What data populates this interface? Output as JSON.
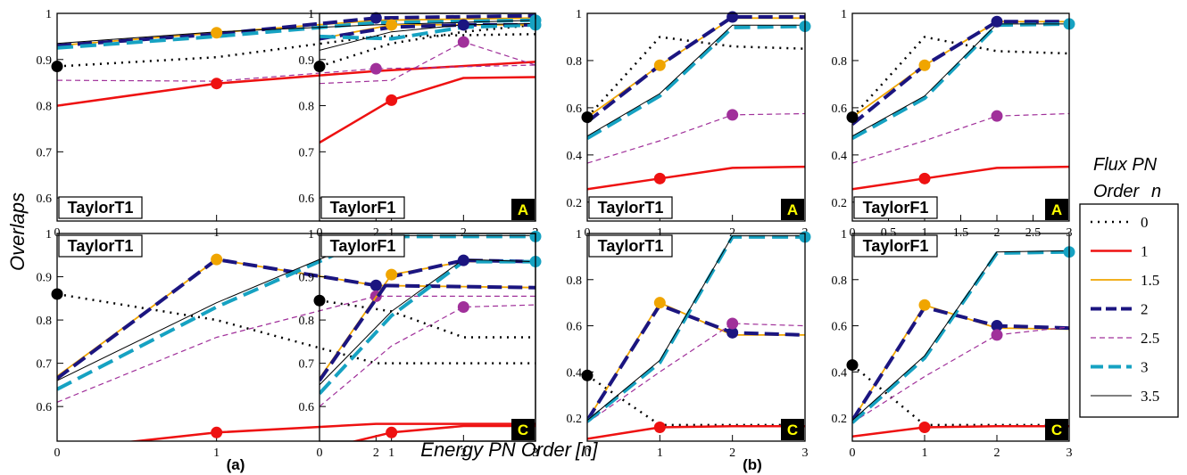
{
  "figure": {
    "ylabel": "Overlaps",
    "xlabel": "Energy PN Order",
    "xlabel_bracket": "[n]",
    "sub_a": "(a)",
    "sub_b": "(b)",
    "legend": {
      "title_line1": "Flux PN",
      "title_line2": "Order",
      "title_var": "n",
      "entries": [
        "0",
        "1",
        "1.5",
        "2",
        "2.5",
        "3",
        "3.5"
      ]
    }
  },
  "styles": {
    "0": {
      "color": "#000000",
      "dash": "2,6",
      "width": 2.5
    },
    "1": {
      "color": "#ee1111",
      "dash": "",
      "width": 2.5
    },
    "1.5": {
      "color": "#f0a500",
      "dash": "",
      "width": 1.8
    },
    "2": {
      "color": "#1b1580",
      "dash": "16,7",
      "width": 4
    },
    "2.5": {
      "color": "#a0309a",
      "dash": "6,4",
      "width": 1.2
    },
    "3": {
      "color": "#16a2c2",
      "dash": "18,8",
      "width": 4
    },
    "3.5": {
      "color": "#000000",
      "dash": "",
      "width": 1
    }
  },
  "chart_data": [
    {
      "type": "line",
      "panel": "top-left",
      "label": "TaylorT1",
      "badge": "A",
      "x": [
        0,
        1,
        2,
        3
      ],
      "xticks": [
        "0",
        "1",
        "2",
        "3"
      ],
      "ylim": [
        0.55,
        1.0
      ],
      "yticks": [
        "0.6",
        "0.7",
        "0.8",
        "0.9",
        "1"
      ],
      "series": [
        {
          "name": "0",
          "values": [
            0.885,
            0.905,
            0.95,
            0.955
          ],
          "marker": 0
        },
        {
          "name": "1",
          "values": [
            0.8,
            0.848,
            0.875,
            0.895
          ],
          "marker": 1
        },
        {
          "name": "1.5",
          "values": [
            0.93,
            0.958,
            0.985,
            0.99
          ],
          "marker": 1
        },
        {
          "name": "2",
          "values": [
            0.93,
            0.955,
            0.99,
            0.995
          ],
          "marker": 2
        },
        {
          "name": "2.5",
          "values": [
            0.855,
            0.853,
            0.88,
            0.888
          ],
          "marker": 2
        },
        {
          "name": "3",
          "values": [
            0.925,
            0.95,
            0.98,
            0.985
          ],
          "marker": 3
        },
        {
          "name": "3.5",
          "values": [
            0.935,
            0.96,
            0.975,
            0.985
          ],
          "marker": null
        }
      ]
    },
    {
      "type": "line",
      "panel": "top-2",
      "label": "TaylorF1",
      "badge": "A",
      "x": [
        0,
        1,
        2,
        3
      ],
      "xticks": [
        "0",
        "1",
        "2",
        "3"
      ],
      "ylim": [
        0.55,
        1.0
      ],
      "yticks": [
        "0.6",
        "0.7",
        "0.8",
        "0.9",
        "1"
      ],
      "series": [
        {
          "name": "0",
          "values": [
            0.885,
            0.935,
            0.96,
            0.975
          ],
          "marker": 0
        },
        {
          "name": "1",
          "values": [
            0.72,
            0.812,
            0.86,
            0.862
          ],
          "marker": 1
        },
        {
          "name": "1.5",
          "values": [
            0.945,
            0.975,
            0.975,
            0.975
          ],
          "marker": 1
        },
        {
          "name": "2",
          "values": [
            0.945,
            0.97,
            0.975,
            0.975
          ],
          "marker": 2
        },
        {
          "name": "2.5",
          "values": [
            0.848,
            0.855,
            0.938,
            0.888
          ],
          "marker": 2
        },
        {
          "name": "3",
          "values": [
            0.95,
            0.945,
            0.97,
            0.975
          ],
          "marker": 3
        },
        {
          "name": "3.5",
          "values": [
            0.92,
            0.96,
            0.975,
            0.978
          ],
          "marker": null
        }
      ]
    },
    {
      "type": "line",
      "panel": "top-3",
      "label": "TaylorT1",
      "badge": "A",
      "x": [
        0,
        1,
        2,
        3
      ],
      "xticks": [
        "0",
        "1",
        "2",
        "3"
      ],
      "ylim": [
        0.12,
        1.0
      ],
      "yticks": [
        "0.2",
        "0.4",
        "0.6",
        "0.8",
        "1"
      ],
      "series": [
        {
          "name": "0",
          "values": [
            0.56,
            0.9,
            0.86,
            0.85
          ],
          "marker": 0
        },
        {
          "name": "1",
          "values": [
            0.255,
            0.3,
            0.345,
            0.35
          ],
          "marker": 1
        },
        {
          "name": "1.5",
          "values": [
            0.56,
            0.78,
            0.98,
            0.98
          ],
          "marker": 1
        },
        {
          "name": "2",
          "values": [
            0.54,
            0.78,
            0.985,
            0.985
          ],
          "marker": 2
        },
        {
          "name": "2.5",
          "values": [
            0.365,
            0.46,
            0.57,
            0.575
          ],
          "marker": 2
        },
        {
          "name": "3",
          "values": [
            0.47,
            0.65,
            0.94,
            0.945
          ],
          "marker": 3
        },
        {
          "name": "3.5",
          "values": [
            0.48,
            0.66,
            0.95,
            0.95
          ],
          "marker": null
        }
      ]
    },
    {
      "type": "line",
      "panel": "top-right",
      "label": "TaylorF1",
      "badge": "A",
      "x": [
        0,
        1,
        2,
        3
      ],
      "xticks": [
        "0",
        "0.5",
        "1",
        "1.5",
        "2",
        "2.5",
        "3"
      ],
      "ylim": [
        0.12,
        1.0
      ],
      "yticks": [
        "0.2",
        "0.4",
        "0.6",
        "0.8",
        "1"
      ],
      "series": [
        {
          "name": "0",
          "values": [
            0.56,
            0.9,
            0.84,
            0.83
          ],
          "marker": 0
        },
        {
          "name": "1",
          "values": [
            0.255,
            0.3,
            0.345,
            0.35
          ],
          "marker": 1
        },
        {
          "name": "1.5",
          "values": [
            0.56,
            0.78,
            0.965,
            0.965
          ],
          "marker": 1
        },
        {
          "name": "2",
          "values": [
            0.53,
            0.78,
            0.965,
            0.965
          ],
          "marker": 2
        },
        {
          "name": "2.5",
          "values": [
            0.365,
            0.46,
            0.565,
            0.575
          ],
          "marker": 2
        },
        {
          "name": "3",
          "values": [
            0.47,
            0.64,
            0.95,
            0.955
          ],
          "marker": 3
        },
        {
          "name": "3.5",
          "values": [
            0.48,
            0.65,
            0.955,
            0.955
          ],
          "marker": null
        }
      ]
    },
    {
      "type": "line",
      "panel": "bottom-left",
      "label": "TaylorT1",
      "badge": "C",
      "x": [
        0,
        1,
        2,
        3
      ],
      "xticks": [
        "0",
        "1",
        "2",
        "3"
      ],
      "ylim": [
        0.52,
        1.0
      ],
      "yticks": [
        "0.6",
        "0.7",
        "0.8",
        "0.9",
        "1"
      ],
      "series": [
        {
          "name": "0",
          "values": [
            0.86,
            0.8,
            0.7,
            0.7
          ],
          "marker": 0
        },
        {
          "name": "1",
          "values": [
            0.5,
            0.54,
            0.56,
            0.56
          ],
          "marker": 1
        },
        {
          "name": "1.5",
          "values": [
            0.67,
            0.94,
            0.88,
            0.875
          ],
          "marker": 1
        },
        {
          "name": "2",
          "values": [
            0.665,
            0.94,
            0.88,
            0.875
          ],
          "marker": 2
        },
        {
          "name": "2.5",
          "values": [
            0.61,
            0.76,
            0.855,
            0.855
          ],
          "marker": 2
        },
        {
          "name": "3",
          "values": [
            0.64,
            0.83,
            0.993,
            0.993
          ],
          "marker": 3
        },
        {
          "name": "3.5",
          "values": [
            0.66,
            0.84,
            0.995,
            0.995
          ],
          "marker": null
        }
      ]
    },
    {
      "type": "line",
      "panel": "bottom-2",
      "label": "TaylorF1",
      "badge": "C",
      "x": [
        0,
        1,
        2,
        3
      ],
      "xticks": [
        "0",
        "1",
        "2",
        "3"
      ],
      "ylim": [
        0.52,
        1.0
      ],
      "yticks": [
        "0.6",
        "0.7",
        "0.8",
        "0.9",
        "1"
      ],
      "series": [
        {
          "name": "0",
          "values": [
            0.845,
            0.82,
            0.76,
            0.76
          ],
          "marker": 0
        },
        {
          "name": "1",
          "values": [
            0.5,
            0.54,
            0.555,
            0.555
          ],
          "marker": 1
        },
        {
          "name": "1.5",
          "values": [
            0.665,
            0.905,
            0.935,
            0.935
          ],
          "marker": 1
        },
        {
          "name": "2",
          "values": [
            0.66,
            0.9,
            0.938,
            0.935
          ],
          "marker": 2
        },
        {
          "name": "2.5",
          "values": [
            0.6,
            0.74,
            0.83,
            0.835
          ],
          "marker": 2
        },
        {
          "name": "3",
          "values": [
            0.63,
            0.81,
            0.935,
            0.935
          ],
          "marker": 3
        },
        {
          "name": "3.5",
          "values": [
            0.65,
            0.82,
            0.94,
            0.935
          ],
          "marker": null
        }
      ]
    },
    {
      "type": "line",
      "panel": "bottom-3",
      "label": "TaylorT1",
      "badge": "C",
      "x": [
        0,
        1,
        2,
        3
      ],
      "xticks": [
        "0",
        "1",
        "2",
        "3"
      ],
      "ylim": [
        0.1,
        1.0
      ],
      "yticks": [
        "0.2",
        "0.4",
        "0.6",
        "0.8",
        "1"
      ],
      "series": [
        {
          "name": "0",
          "values": [
            0.385,
            0.17,
            0.17,
            0.17
          ],
          "marker": 0
        },
        {
          "name": "1",
          "values": [
            0.11,
            0.16,
            0.165,
            0.165
          ],
          "marker": 1
        },
        {
          "name": "1.5",
          "values": [
            0.19,
            0.7,
            0.56,
            0.56
          ],
          "marker": 1
        },
        {
          "name": "2",
          "values": [
            0.19,
            0.69,
            0.57,
            0.56
          ],
          "marker": 2
        },
        {
          "name": "2.5",
          "values": [
            0.18,
            0.4,
            0.61,
            0.6
          ],
          "marker": 2
        },
        {
          "name": "3",
          "values": [
            0.185,
            0.44,
            0.985,
            0.985
          ],
          "marker": 3
        },
        {
          "name": "3.5",
          "values": [
            0.19,
            0.45,
            0.99,
            0.99
          ],
          "marker": null
        }
      ]
    },
    {
      "type": "line",
      "panel": "bottom-right",
      "label": "TaylorF1",
      "badge": "C",
      "x": [
        0,
        1,
        2,
        3
      ],
      "xticks": [
        "0",
        "1",
        "2",
        "3"
      ],
      "ylim": [
        0.1,
        1.0
      ],
      "yticks": [
        "0.2",
        "0.4",
        "0.6",
        "0.8",
        "1"
      ],
      "series": [
        {
          "name": "0",
          "values": [
            0.43,
            0.17,
            0.17,
            0.17
          ],
          "marker": 0
        },
        {
          "name": "1",
          "values": [
            0.12,
            0.16,
            0.165,
            0.165
          ],
          "marker": 1
        },
        {
          "name": "1.5",
          "values": [
            0.19,
            0.69,
            0.59,
            0.585
          ],
          "marker": 1
        },
        {
          "name": "2",
          "values": [
            0.19,
            0.68,
            0.6,
            0.59
          ],
          "marker": 2
        },
        {
          "name": "2.5",
          "values": [
            0.18,
            0.38,
            0.56,
            0.595
          ],
          "marker": 2
        },
        {
          "name": "3",
          "values": [
            0.18,
            0.46,
            0.915,
            0.92
          ],
          "marker": 3
        },
        {
          "name": "3.5",
          "values": [
            0.19,
            0.47,
            0.92,
            0.925
          ],
          "marker": null
        }
      ]
    }
  ]
}
